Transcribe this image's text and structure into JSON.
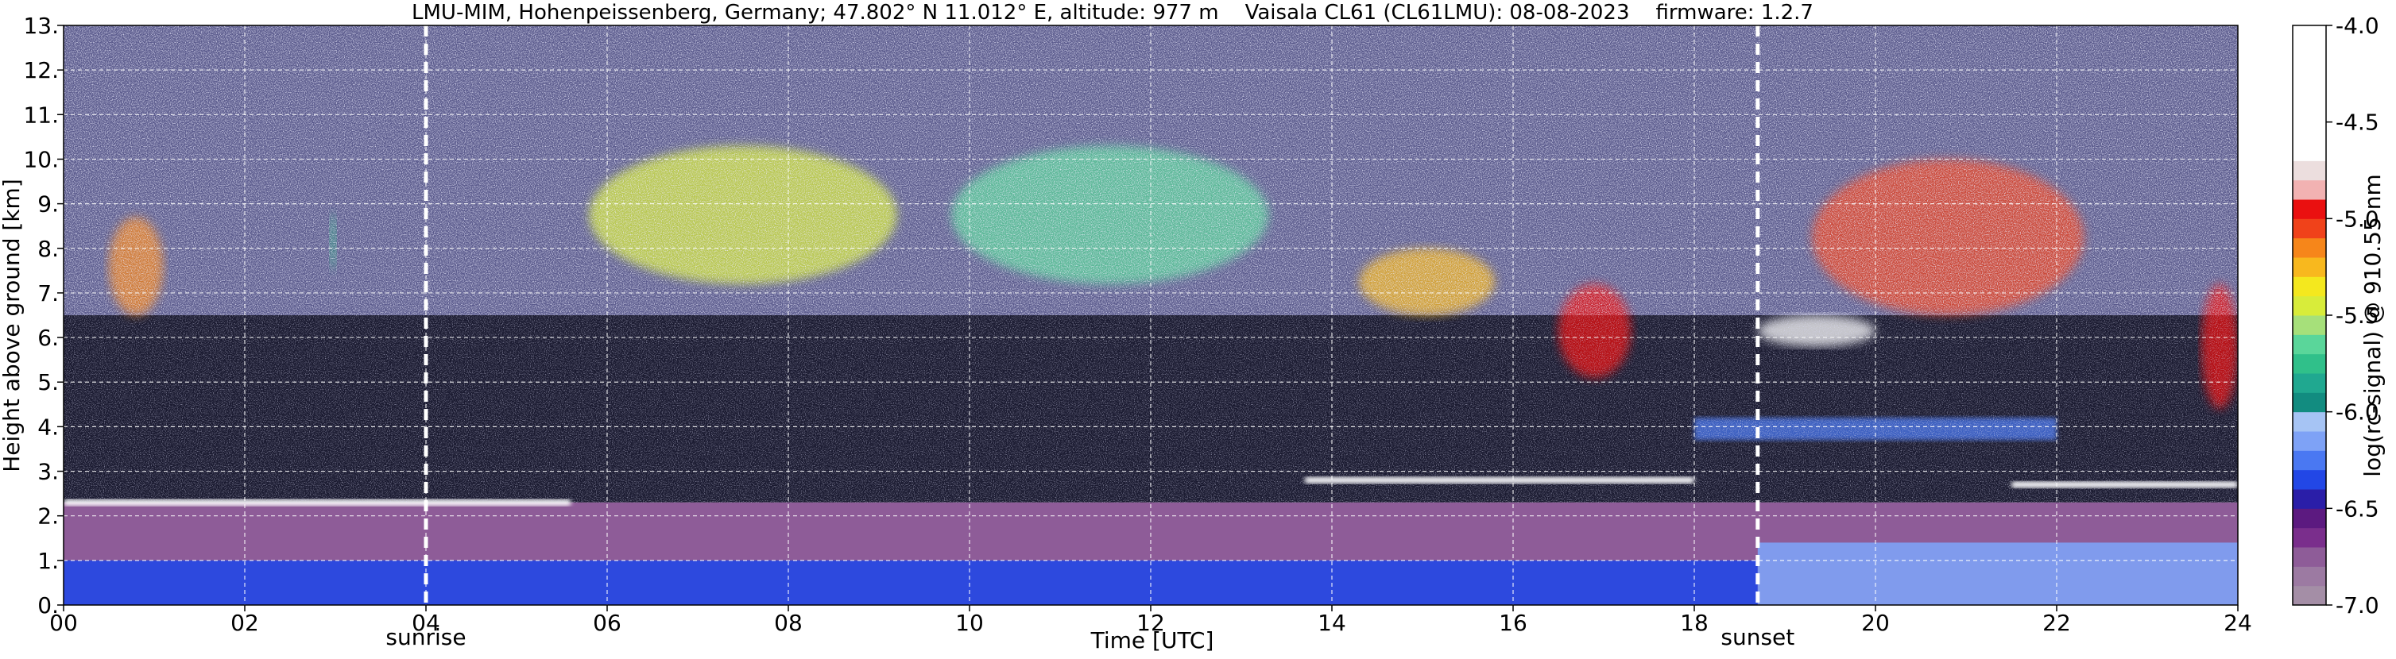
{
  "chart_data": {
    "type": "heatmap",
    "title": "LMU-MIM, Hohenpeissenberg, Germany; 47.802° N 11.012° E, altitude: 977 m    Vaisala CL61 (CL61LMU): 08-08-2023    firmware: 1.2.7",
    "xlabel": "Time [UTC]",
    "ylabel": "Height above ground [km]",
    "xlim": [
      0,
      24
    ],
    "ylim": [
      0,
      13
    ],
    "x_ticks": [
      {
        "value": 0,
        "label": "00"
      },
      {
        "value": 2,
        "label": "02"
      },
      {
        "value": 4,
        "label": "04"
      },
      {
        "value": 6,
        "label": "06"
      },
      {
        "value": 8,
        "label": "08"
      },
      {
        "value": 10,
        "label": "10"
      },
      {
        "value": 12,
        "label": "12"
      },
      {
        "value": 14,
        "label": "14"
      },
      {
        "value": 16,
        "label": "16"
      },
      {
        "value": 18,
        "label": "18"
      },
      {
        "value": 20,
        "label": "20"
      },
      {
        "value": 22,
        "label": "22"
      },
      {
        "value": 24,
        "label": "24"
      }
    ],
    "y_ticks": [
      {
        "value": 0,
        "label": "0."
      },
      {
        "value": 1,
        "label": "1."
      },
      {
        "value": 2,
        "label": "2."
      },
      {
        "value": 3,
        "label": "3."
      },
      {
        "value": 4,
        "label": "4."
      },
      {
        "value": 5,
        "label": "5."
      },
      {
        "value": 6,
        "label": "6."
      },
      {
        "value": 7,
        "label": "7."
      },
      {
        "value": 8,
        "label": "8."
      },
      {
        "value": 9,
        "label": "9."
      },
      {
        "value": 10,
        "label": "10."
      },
      {
        "value": 11,
        "label": "11."
      },
      {
        "value": 12,
        "label": "12."
      },
      {
        "value": 13,
        "label": "13."
      }
    ],
    "grid": true,
    "annotations": [
      {
        "x": 4.0,
        "label": "sunrise"
      },
      {
        "x": 18.7,
        "label": "sunset"
      }
    ],
    "colorbar": {
      "label": "log(rc-signal) @ 910.55 nm",
      "range": [
        -7.0,
        -4.0
      ],
      "ticks": [
        {
          "value": -4.0,
          "label": "-4.0"
        },
        {
          "value": -4.5,
          "label": "-4.5"
        },
        {
          "value": -5.0,
          "label": "-5.0"
        },
        {
          "value": -5.5,
          "label": "-5.5"
        },
        {
          "value": -6.0,
          "label": "-6.0"
        },
        {
          "value": -6.5,
          "label": "-6.5"
        },
        {
          "value": -7.0,
          "label": "-7.0"
        }
      ],
      "levels": [
        {
          "from": -7.0,
          "to": -6.9,
          "color": "#a48ea6"
        },
        {
          "from": -6.9,
          "to": -6.8,
          "color": "#9c7aa2"
        },
        {
          "from": -6.8,
          "to": -6.7,
          "color": "#8e5c98"
        },
        {
          "from": -6.7,
          "to": -6.6,
          "color": "#7a2e8c"
        },
        {
          "from": -6.6,
          "to": -6.5,
          "color": "#5c1a80"
        },
        {
          "from": -6.5,
          "to": -6.4,
          "color": "#2a1ea8"
        },
        {
          "from": -6.4,
          "to": -6.3,
          "color": "#2247e6"
        },
        {
          "from": -6.3,
          "to": -6.2,
          "color": "#4a78f2"
        },
        {
          "from": -6.2,
          "to": -6.1,
          "color": "#7ea2f6"
        },
        {
          "from": -6.1,
          "to": -6.0,
          "color": "#a6c4f4"
        },
        {
          "from": -6.0,
          "to": -5.9,
          "color": "#128c80"
        },
        {
          "from": -5.9,
          "to": -5.8,
          "color": "#20a890"
        },
        {
          "from": -5.8,
          "to": -5.7,
          "color": "#30c08a"
        },
        {
          "from": -5.7,
          "to": -5.6,
          "color": "#5ad69a"
        },
        {
          "from": -5.6,
          "to": -5.5,
          "color": "#a6e07a"
        },
        {
          "from": -5.5,
          "to": -5.4,
          "color": "#d8ec3a"
        },
        {
          "from": -5.4,
          "to": -5.3,
          "color": "#f4e81e"
        },
        {
          "from": -5.3,
          "to": -5.2,
          "color": "#f8b81e"
        },
        {
          "from": -5.2,
          "to": -5.1,
          "color": "#f6861a"
        },
        {
          "from": -5.1,
          "to": -5.0,
          "color": "#f0421a"
        },
        {
          "from": -5.0,
          "to": -4.9,
          "color": "#ea1010"
        },
        {
          "from": -4.9,
          "to": -4.8,
          "color": "#f2b2b2"
        },
        {
          "from": -4.8,
          "to": -4.7,
          "color": "#ecdede"
        },
        {
          "from": -4.7,
          "to": -4.0,
          "color": "#ffffff"
        }
      ]
    },
    "features": [
      {
        "kind": "background_noise",
        "y": [
          6.5,
          13.0
        ],
        "color": "#5a5a8c"
      },
      {
        "kind": "background_noise",
        "y": [
          2.3,
          6.5
        ],
        "color": "#1a1a30"
      },
      {
        "kind": "boundary_layer",
        "x": [
          0,
          24
        ],
        "y": [
          0,
          2.3
        ],
        "color": "#8e5c98"
      },
      {
        "kind": "boundary_layer_core",
        "x": [
          0,
          18.7
        ],
        "y": [
          0,
          1.0
        ],
        "color": "#2247e6"
      },
      {
        "kind": "boundary_layer_core",
        "x": [
          18.7,
          24
        ],
        "y": [
          0,
          1.4
        ],
        "color": "#7ea2f6"
      },
      {
        "kind": "aerosol_layer_top",
        "x": [
          0.0,
          5.6
        ],
        "y": 2.3,
        "color": "#ffffff"
      },
      {
        "kind": "aerosol_layer_top",
        "x": [
          13.7,
          18.0
        ],
        "y": 2.8,
        "color": "#ffffff"
      },
      {
        "kind": "aerosol_layer_top",
        "x": [
          21.5,
          24.0
        ],
        "y": 2.7,
        "color": "#ffffff"
      },
      {
        "kind": "elevated_layer",
        "x": [
          18.0,
          22.0
        ],
        "y": [
          3.7,
          4.2
        ],
        "color": "#4a78f2"
      },
      {
        "kind": "cloud",
        "x": [
          0.5,
          1.1
        ],
        "y": [
          6.5,
          8.7
        ],
        "color": "#f6861a"
      },
      {
        "kind": "cloud",
        "x": [
          2.95,
          3.0
        ],
        "y": [
          7.5,
          8.8
        ],
        "color": "#30c08a"
      },
      {
        "kind": "cloud",
        "x": [
          5.8,
          9.2
        ],
        "y": [
          7.2,
          10.3
        ],
        "color": "#d8ec3a"
      },
      {
        "kind": "cloud",
        "x": [
          9.8,
          13.3
        ],
        "y": [
          7.2,
          10.3
        ],
        "color": "#5ad69a"
      },
      {
        "kind": "cloud",
        "x": [
          14.3,
          15.8
        ],
        "y": [
          6.5,
          8.0
        ],
        "color": "#f8b81e"
      },
      {
        "kind": "cloud",
        "x": [
          16.5,
          17.3
        ],
        "y": [
          5.1,
          7.2
        ],
        "color": "#ea1010"
      },
      {
        "kind": "cloud",
        "x": [
          18.7,
          20.0
        ],
        "y": [
          5.8,
          6.5
        ],
        "color": "#ffffff"
      },
      {
        "kind": "cloud",
        "x": [
          19.3,
          22.3
        ],
        "y": [
          6.5,
          10.0
        ],
        "color": "#f0421a"
      },
      {
        "kind": "cloud",
        "x": [
          23.6,
          24.0
        ],
        "y": [
          4.4,
          7.2
        ],
        "color": "#ea1010"
      }
    ]
  }
}
